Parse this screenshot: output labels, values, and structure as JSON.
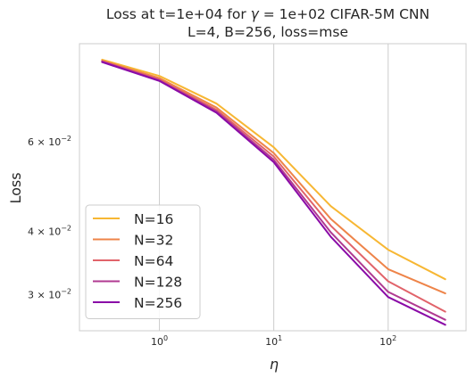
{
  "chart_data": {
    "type": "line",
    "title_line1_prefix": "Loss at t=1e+04 for ",
    "title_line1_gamma": "γ",
    "title_line1_suffix": " = 1e+02 CIFAR-5M CNN",
    "title_line2": "L=4, B=256, loss=mse",
    "xlabel": "η",
    "ylabel": "Loss",
    "xscale": "log",
    "yscale": "log",
    "xlim": [
      0.2,
      480
    ],
    "ylim": [
      0.0255,
      0.0935
    ],
    "x": [
      0.316,
      1.0,
      3.16,
      10.0,
      31.6,
      100.0,
      316.0
    ],
    "x_ticks": [
      {
        "value": 1,
        "base": "10",
        "exp": "0"
      },
      {
        "value": 10,
        "base": "10",
        "exp": "1"
      },
      {
        "value": 100,
        "base": "10",
        "exp": "2"
      }
    ],
    "y_ticks": [
      {
        "value": 0.06,
        "mant": "6 × 10",
        "exp": "−2"
      },
      {
        "value": 0.04,
        "mant": "4 × 10",
        "exp": "−2"
      },
      {
        "value": 0.03,
        "mant": "3 × 10",
        "exp": "−2"
      }
    ],
    "grid": "x-major",
    "legend_position": "lower-left",
    "series": [
      {
        "name": "N=16",
        "color": "#f7b733",
        "values": [
          0.087,
          0.0808,
          0.0713,
          0.0585,
          0.0448,
          0.0368,
          0.0322
        ]
      },
      {
        "name": "N=32",
        "color": "#ee8449",
        "values": [
          0.0866,
          0.08,
          0.07,
          0.057,
          0.0423,
          0.0337,
          0.0302
        ]
      },
      {
        "name": "N=64",
        "color": "#e1636a",
        "values": [
          0.0864,
          0.0795,
          0.0693,
          0.0561,
          0.041,
          0.0319,
          0.0278
        ]
      },
      {
        "name": "N=128",
        "color": "#b03a91",
        "values": [
          0.0862,
          0.0792,
          0.0688,
          0.0553,
          0.0398,
          0.0304,
          0.0268
        ]
      },
      {
        "name": "N=256",
        "color": "#8a0aa7",
        "values": [
          0.086,
          0.079,
          0.0684,
          0.0547,
          0.039,
          0.0297,
          0.0262
        ]
      }
    ]
  }
}
